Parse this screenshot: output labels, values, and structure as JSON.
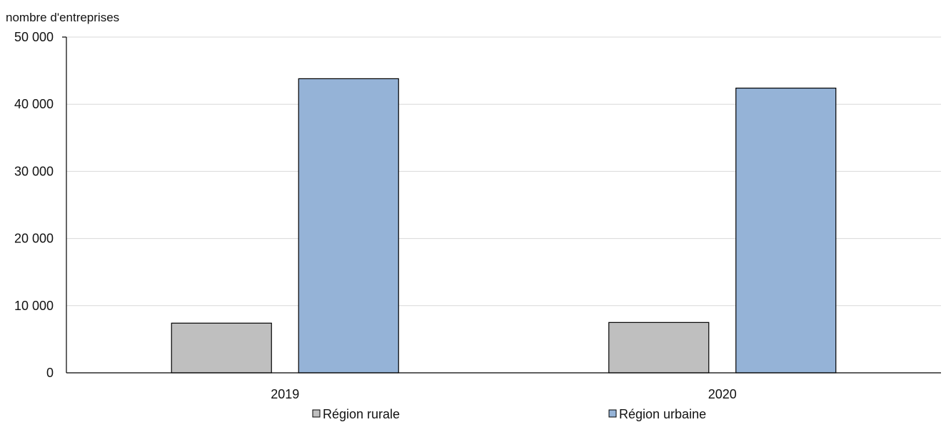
{
  "chart_data": {
    "type": "bar",
    "ylabel": "nombre d'entreprises",
    "categories": [
      "2019",
      "2020"
    ],
    "series": [
      {
        "name": "Région rurale",
        "color": "#bfbfbf",
        "values": [
          7400,
          7500
        ]
      },
      {
        "name": "Région urbaine",
        "color": "#95b3d7",
        "values": [
          43800,
          42400
        ]
      }
    ],
    "ylim": [
      0,
      50000
    ],
    "yticks": [
      0,
      10000,
      20000,
      30000,
      40000,
      50000
    ],
    "ytick_labels": [
      "0",
      "10 000",
      "20 000",
      "30 000",
      "40 000",
      "50 000"
    ],
    "grid": true,
    "legend_position": "bottom"
  }
}
